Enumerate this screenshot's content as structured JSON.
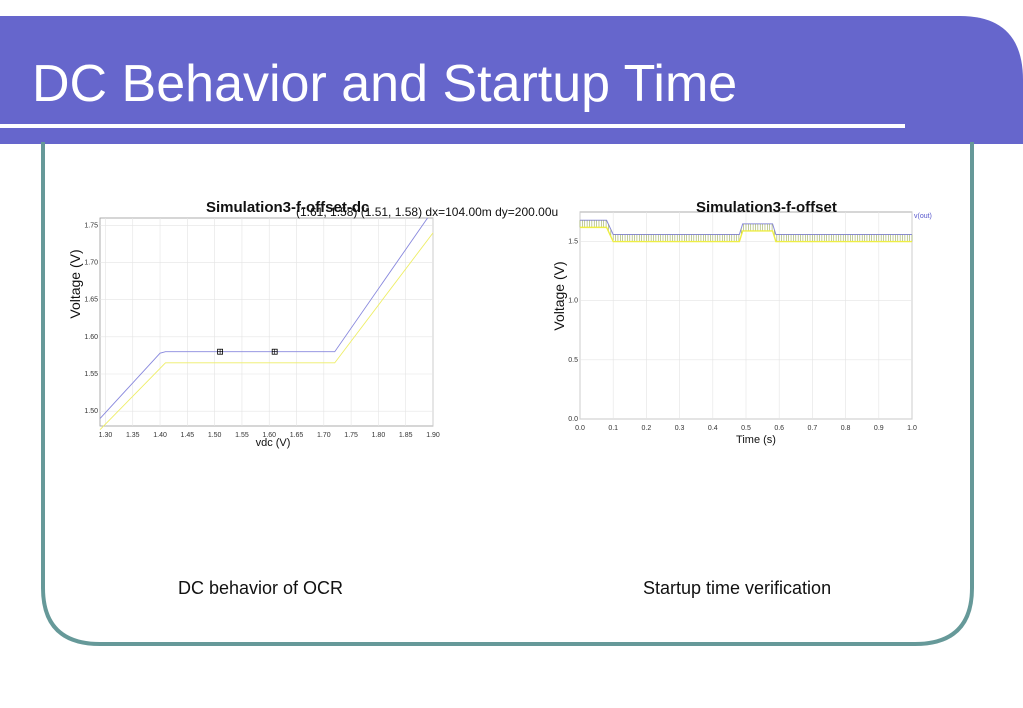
{
  "slide": {
    "title": "DC Behavior and Startup Time",
    "colors": {
      "header": "#6666cc",
      "frame": "#669999",
      "underline": "#ffffff"
    }
  },
  "captions": {
    "left": "DC behavior of OCR",
    "right": "Startup time verification"
  },
  "chart_data": [
    {
      "type": "line",
      "title": "Simulation3-f-offset-dc",
      "annotation": "(1.61, 1.58) (1.51, 1.58) dx=104.00m dy=200.00u",
      "xlabel": "vdc (V)",
      "ylabel": "Voltage (V)",
      "xlim": [
        1.29,
        1.9
      ],
      "ylim": [
        1.48,
        1.76
      ],
      "x_ticks": [
        "1.30",
        "1.35",
        "1.40",
        "1.45",
        "1.50",
        "1.55",
        "1.60",
        "1.65",
        "1.70",
        "1.75",
        "1.80",
        "1.85",
        "1.90"
      ],
      "y_ticks": [
        "1.50",
        "1.55",
        "1.60",
        "1.65",
        "1.70",
        "1.75"
      ],
      "grid": true,
      "legend_position": "top-right",
      "series": [
        {
          "color": "#8888dd",
          "x": [
            1.29,
            1.4,
            1.41,
            1.72,
            1.89
          ],
          "y": [
            1.49,
            1.578,
            1.58,
            1.58,
            1.76
          ]
        },
        {
          "color": "#eeee66",
          "x": [
            1.29,
            1.41,
            1.72,
            1.9
          ],
          "y": [
            1.475,
            1.565,
            1.565,
            1.74
          ]
        }
      ],
      "markers": [
        {
          "x": 1.51,
          "y": 1.58
        },
        {
          "x": 1.61,
          "y": 1.58
        }
      ]
    },
    {
      "type": "line",
      "title": "Simulation3-f-offset",
      "xlabel": "Time (s)",
      "ylabel": "Voltage (V)",
      "legend": [
        "v(out)"
      ],
      "legend_position": "top-right",
      "xlim": [
        0.0,
        1.0
      ],
      "ylim": [
        0.0,
        1.75
      ],
      "x_ticks": [
        "0.0",
        "0.1",
        "0.2",
        "0.3",
        "0.4",
        "0.5",
        "0.6",
        "0.7",
        "0.8",
        "0.9",
        "1.0"
      ],
      "y_ticks": [
        "0.0",
        "0.5",
        "1.0",
        "1.5"
      ],
      "grid": true,
      "series": [
        {
          "name": "v(out)",
          "color": "#8888dd",
          "x": [
            0.0,
            0.08,
            0.1,
            0.48,
            0.49,
            0.58,
            0.59,
            1.0
          ],
          "y": [
            1.68,
            1.68,
            1.56,
            1.56,
            1.65,
            1.65,
            1.56,
            1.56
          ]
        }
      ]
    }
  ]
}
